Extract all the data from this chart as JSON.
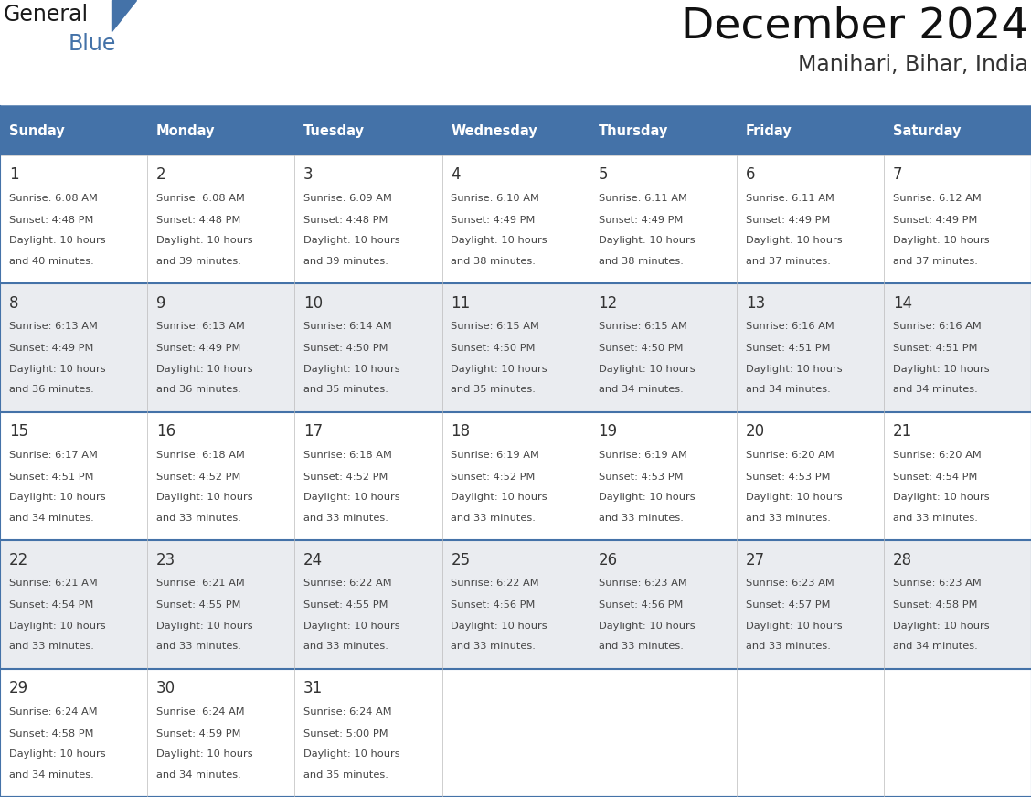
{
  "title": "December 2024",
  "subtitle": "Manihari, Bihar, India",
  "header_color": "#4472A8",
  "header_text_color": "#FFFFFF",
  "days_of_week": [
    "Sunday",
    "Monday",
    "Tuesday",
    "Wednesday",
    "Thursday",
    "Friday",
    "Saturday"
  ],
  "row_bg_colors": [
    "#FFFFFF",
    "#EAECF0"
  ],
  "grid_line_color": "#4472A8",
  "day_num_color": "#333333",
  "text_color": "#444444",
  "calendar_data": [
    [
      {
        "day": 1,
        "sunrise": "6:08 AM",
        "sunset": "4:48 PM",
        "daylight_line1": "Daylight: 10 hours",
        "daylight_line2": "and 40 minutes."
      },
      {
        "day": 2,
        "sunrise": "6:08 AM",
        "sunset": "4:48 PM",
        "daylight_line1": "Daylight: 10 hours",
        "daylight_line2": "and 39 minutes."
      },
      {
        "day": 3,
        "sunrise": "6:09 AM",
        "sunset": "4:48 PM",
        "daylight_line1": "Daylight: 10 hours",
        "daylight_line2": "and 39 minutes."
      },
      {
        "day": 4,
        "sunrise": "6:10 AM",
        "sunset": "4:49 PM",
        "daylight_line1": "Daylight: 10 hours",
        "daylight_line2": "and 38 minutes."
      },
      {
        "day": 5,
        "sunrise": "6:11 AM",
        "sunset": "4:49 PM",
        "daylight_line1": "Daylight: 10 hours",
        "daylight_line2": "and 38 minutes."
      },
      {
        "day": 6,
        "sunrise": "6:11 AM",
        "sunset": "4:49 PM",
        "daylight_line1": "Daylight: 10 hours",
        "daylight_line2": "and 37 minutes."
      },
      {
        "day": 7,
        "sunrise": "6:12 AM",
        "sunset": "4:49 PM",
        "daylight_line1": "Daylight: 10 hours",
        "daylight_line2": "and 37 minutes."
      }
    ],
    [
      {
        "day": 8,
        "sunrise": "6:13 AM",
        "sunset": "4:49 PM",
        "daylight_line1": "Daylight: 10 hours",
        "daylight_line2": "and 36 minutes."
      },
      {
        "day": 9,
        "sunrise": "6:13 AM",
        "sunset": "4:49 PM",
        "daylight_line1": "Daylight: 10 hours",
        "daylight_line2": "and 36 minutes."
      },
      {
        "day": 10,
        "sunrise": "6:14 AM",
        "sunset": "4:50 PM",
        "daylight_line1": "Daylight: 10 hours",
        "daylight_line2": "and 35 minutes."
      },
      {
        "day": 11,
        "sunrise": "6:15 AM",
        "sunset": "4:50 PM",
        "daylight_line1": "Daylight: 10 hours",
        "daylight_line2": "and 35 minutes."
      },
      {
        "day": 12,
        "sunrise": "6:15 AM",
        "sunset": "4:50 PM",
        "daylight_line1": "Daylight: 10 hours",
        "daylight_line2": "and 34 minutes."
      },
      {
        "day": 13,
        "sunrise": "6:16 AM",
        "sunset": "4:51 PM",
        "daylight_line1": "Daylight: 10 hours",
        "daylight_line2": "and 34 minutes."
      },
      {
        "day": 14,
        "sunrise": "6:16 AM",
        "sunset": "4:51 PM",
        "daylight_line1": "Daylight: 10 hours",
        "daylight_line2": "and 34 minutes."
      }
    ],
    [
      {
        "day": 15,
        "sunrise": "6:17 AM",
        "sunset": "4:51 PM",
        "daylight_line1": "Daylight: 10 hours",
        "daylight_line2": "and 34 minutes."
      },
      {
        "day": 16,
        "sunrise": "6:18 AM",
        "sunset": "4:52 PM",
        "daylight_line1": "Daylight: 10 hours",
        "daylight_line2": "and 33 minutes."
      },
      {
        "day": 17,
        "sunrise": "6:18 AM",
        "sunset": "4:52 PM",
        "daylight_line1": "Daylight: 10 hours",
        "daylight_line2": "and 33 minutes."
      },
      {
        "day": 18,
        "sunrise": "6:19 AM",
        "sunset": "4:52 PM",
        "daylight_line1": "Daylight: 10 hours",
        "daylight_line2": "and 33 minutes."
      },
      {
        "day": 19,
        "sunrise": "6:19 AM",
        "sunset": "4:53 PM",
        "daylight_line1": "Daylight: 10 hours",
        "daylight_line2": "and 33 minutes."
      },
      {
        "day": 20,
        "sunrise": "6:20 AM",
        "sunset": "4:53 PM",
        "daylight_line1": "Daylight: 10 hours",
        "daylight_line2": "and 33 minutes."
      },
      {
        "day": 21,
        "sunrise": "6:20 AM",
        "sunset": "4:54 PM",
        "daylight_line1": "Daylight: 10 hours",
        "daylight_line2": "and 33 minutes."
      }
    ],
    [
      {
        "day": 22,
        "sunrise": "6:21 AM",
        "sunset": "4:54 PM",
        "daylight_line1": "Daylight: 10 hours",
        "daylight_line2": "and 33 minutes."
      },
      {
        "day": 23,
        "sunrise": "6:21 AM",
        "sunset": "4:55 PM",
        "daylight_line1": "Daylight: 10 hours",
        "daylight_line2": "and 33 minutes."
      },
      {
        "day": 24,
        "sunrise": "6:22 AM",
        "sunset": "4:55 PM",
        "daylight_line1": "Daylight: 10 hours",
        "daylight_line2": "and 33 minutes."
      },
      {
        "day": 25,
        "sunrise": "6:22 AM",
        "sunset": "4:56 PM",
        "daylight_line1": "Daylight: 10 hours",
        "daylight_line2": "and 33 minutes."
      },
      {
        "day": 26,
        "sunrise": "6:23 AM",
        "sunset": "4:56 PM",
        "daylight_line1": "Daylight: 10 hours",
        "daylight_line2": "and 33 minutes."
      },
      {
        "day": 27,
        "sunrise": "6:23 AM",
        "sunset": "4:57 PM",
        "daylight_line1": "Daylight: 10 hours",
        "daylight_line2": "and 33 minutes."
      },
      {
        "day": 28,
        "sunrise": "6:23 AM",
        "sunset": "4:58 PM",
        "daylight_line1": "Daylight: 10 hours",
        "daylight_line2": "and 34 minutes."
      }
    ],
    [
      {
        "day": 29,
        "sunrise": "6:24 AM",
        "sunset": "4:58 PM",
        "daylight_line1": "Daylight: 10 hours",
        "daylight_line2": "and 34 minutes."
      },
      {
        "day": 30,
        "sunrise": "6:24 AM",
        "sunset": "4:59 PM",
        "daylight_line1": "Daylight: 10 hours",
        "daylight_line2": "and 34 minutes."
      },
      {
        "day": 31,
        "sunrise": "6:24 AM",
        "sunset": "5:00 PM",
        "daylight_line1": "Daylight: 10 hours",
        "daylight_line2": "and 35 minutes."
      },
      null,
      null,
      null,
      null
    ]
  ],
  "logo_general_color": "#1a1a1a",
  "logo_blue_color": "#4472A8",
  "logo_triangle_color": "#4472A8"
}
